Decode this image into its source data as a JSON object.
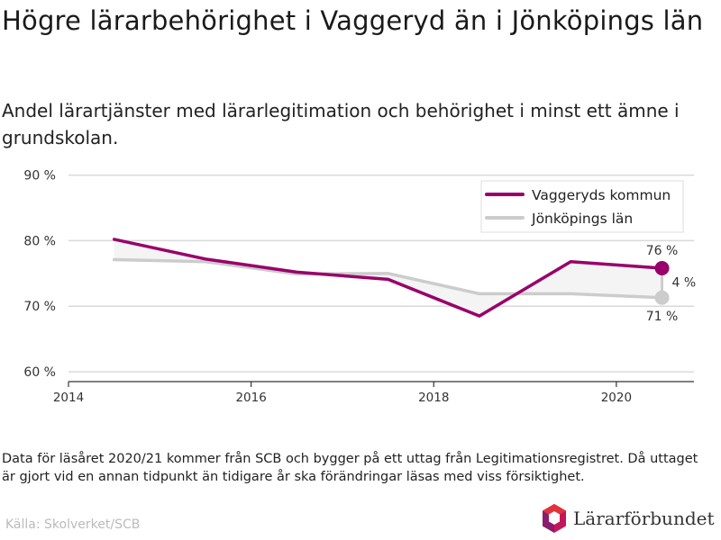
{
  "header": {
    "title": "Högre lärarbehörighet i Vaggeryd än i Jönköpings län",
    "subtitle": "Andel lärartjänster med lärarlegitimation och behörighet i minst ett ämne i grundskolan."
  },
  "footer": {
    "note": "Data för läsåret 2020/21 kommer från SCB och bygger på ett uttag från Legitimationsregistret. Då uttaget är gjort vid en annan tidpunkt än tidigare år ska förändringar läsas med viss försiktighet.",
    "source": "Källa: Skolverket/SCB",
    "logo_text": "Lärarförbundet"
  },
  "colors": {
    "primary": "#99006b",
    "secondary": "#cccccc",
    "gap_fill": "#f4f4f4",
    "grid": "#d9d9d9",
    "logo_red": "#e0333b",
    "logo_purple": "#8a1c6e",
    "logo_pink": "#c2185b"
  },
  "chart_data": {
    "type": "line",
    "x": [
      2014.5,
      2015.5,
      2016.5,
      2017.5,
      2018.5,
      2019.5,
      2020.5
    ],
    "series": [
      {
        "name": "Vaggeryds kommun",
        "values": [
          80.2,
          77.2,
          75.2,
          74.1,
          68.5,
          76.8,
          75.8
        ]
      },
      {
        "name": "Jönköpings län",
        "values": [
          77.1,
          76.8,
          74.9,
          75.0,
          71.9,
          71.9,
          71.3
        ]
      }
    ],
    "xlim": [
      2014,
      2020.85
    ],
    "ylim": [
      58.5,
      92
    ],
    "x_ticks": [
      2014,
      2016,
      2018,
      2020
    ],
    "x_tick_labels": [
      "2014",
      "2016",
      "2018",
      "2020"
    ],
    "y_ticks": [
      60,
      70,
      80,
      90
    ],
    "y_tick_labels": [
      "60 %",
      "70 %",
      "80 %",
      "90 %"
    ],
    "end_labels": [
      "76 %",
      "71 %"
    ],
    "diff_label": "4 %",
    "legend_position": "top-right",
    "grid": true
  }
}
